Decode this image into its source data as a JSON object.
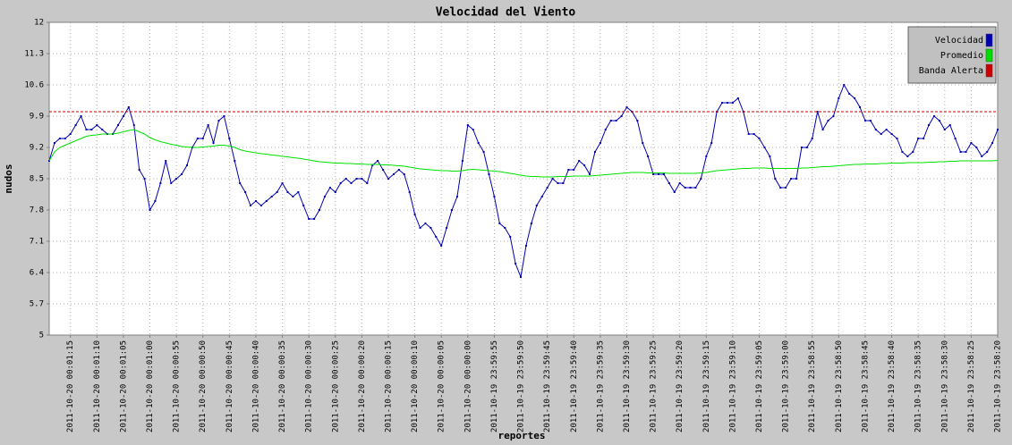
{
  "chart_data": {
    "type": "line",
    "title": "Velocidad del Viento",
    "y_label": "nudos",
    "x_label": "reportes",
    "ylim": [
      5,
      12
    ],
    "yticks": [
      5,
      5.7,
      6.4,
      7.1,
      7.8,
      8.5,
      9.2,
      9.9,
      10.6,
      11.3,
      12
    ],
    "grid": true,
    "legend": "top-right",
    "categories": [
      null,
      null,
      null,
      null,
      "2011-10-20 00:01:15",
      null,
      null,
      null,
      null,
      "2011-10-20 00:01:10",
      null,
      null,
      null,
      null,
      "2011-10-20 00:01:05",
      null,
      null,
      null,
      null,
      "2011-10-20 00:01:00",
      null,
      null,
      null,
      null,
      "2011-10-20 00:00:55",
      null,
      null,
      null,
      null,
      "2011-10-20 00:00:50",
      null,
      null,
      null,
      null,
      "2011-10-20 00:00:45",
      null,
      null,
      null,
      null,
      "2011-10-20 00:00:40",
      null,
      null,
      null,
      null,
      "2011-10-20 00:00:35",
      null,
      null,
      null,
      null,
      "2011-10-20 00:00:30",
      null,
      null,
      null,
      null,
      "2011-10-20 00:00:25",
      null,
      null,
      null,
      null,
      "2011-10-20 00:00:20",
      null,
      null,
      null,
      null,
      "2011-10-20 00:00:15",
      null,
      null,
      null,
      null,
      "2011-10-20 00:00:10",
      null,
      null,
      null,
      null,
      "2011-10-20 00:00:05",
      null,
      null,
      null,
      null,
      "2011-10-20 00:00:00",
      null,
      null,
      null,
      null,
      "2011-10-19 23:59:55",
      null,
      null,
      null,
      null,
      "2011-10-19 23:59:50",
      null,
      null,
      null,
      null,
      "2011-10-19 23:59:45",
      null,
      null,
      null,
      null,
      "2011-10-19 23:59:40",
      null,
      null,
      null,
      null,
      "2011-10-19 23:59:35",
      null,
      null,
      null,
      null,
      "2011-10-19 23:59:30",
      null,
      null,
      null,
      null,
      "2011-10-19 23:59:25",
      null,
      null,
      null,
      null,
      "2011-10-19 23:59:20",
      null,
      null,
      null,
      null,
      "2011-10-19 23:59:15",
      null,
      null,
      null,
      null,
      "2011-10-19 23:59:10",
      null,
      null,
      null,
      null,
      "2011-10-19 23:59:05",
      null,
      null,
      null,
      null,
      "2011-10-19 23:59:00",
      null,
      null,
      null,
      null,
      "2011-10-19 23:58:55",
      null,
      null,
      null,
      null,
      "2011-10-19 23:58:50",
      null,
      null,
      null,
      null,
      "2011-10-19 23:58:45",
      null,
      null,
      null,
      null,
      "2011-10-19 23:58:40",
      null,
      null,
      null,
      null,
      "2011-10-19 23:58:35",
      null,
      null,
      null,
      null,
      "2011-10-19 23:58:30",
      null,
      null,
      null,
      null,
      "2011-10-19 23:58:25",
      null,
      null,
      null,
      null,
      "2011-10-19 23:58:20"
    ],
    "series": [
      {
        "name": "Velocidad",
        "color": "#0000b0",
        "values": [
          8.9,
          9.3,
          9.4,
          9.4,
          9.5,
          9.7,
          9.9,
          9.6,
          9.6,
          9.7,
          9.6,
          9.5,
          9.5,
          9.7,
          9.9,
          10.1,
          9.7,
          8.7,
          8.5,
          7.8,
          8.0,
          8.4,
          8.9,
          8.4,
          8.5,
          8.6,
          8.8,
          9.2,
          9.4,
          9.4,
          9.7,
          9.3,
          9.8,
          9.9,
          9.4,
          8.9,
          8.4,
          8.2,
          7.9,
          8.0,
          7.9,
          8.0,
          8.1,
          8.2,
          8.4,
          8.2,
          8.1,
          8.2,
          7.9,
          7.6,
          7.6,
          7.8,
          8.1,
          8.3,
          8.2,
          8.4,
          8.5,
          8.4,
          8.5,
          8.5,
          8.4,
          8.8,
          8.9,
          8.7,
          8.5,
          8.6,
          8.7,
          8.6,
          8.2,
          7.7,
          7.4,
          7.5,
          7.4,
          7.2,
          7.0,
          7.4,
          7.8,
          8.1,
          8.9,
          9.7,
          9.6,
          9.3,
          9.1,
          8.6,
          8.1,
          7.5,
          7.4,
          7.2,
          6.6,
          6.3,
          7.0,
          7.5,
          7.9,
          8.1,
          8.3,
          8.5,
          8.4,
          8.4,
          8.7,
          8.7,
          8.9,
          8.8,
          8.6,
          9.1,
          9.3,
          9.6,
          9.8,
          9.8,
          9.9,
          10.1,
          10.0,
          9.8,
          9.3,
          9.0,
          8.6,
          8.6,
          8.6,
          8.4,
          8.2,
          8.4,
          8.3,
          8.3,
          8.3,
          8.5,
          9.0,
          9.3,
          10.0,
          10.2,
          10.2,
          10.2,
          10.3,
          10.0,
          9.5,
          9.5,
          9.4,
          9.2,
          9.0,
          8.5,
          8.3,
          8.3,
          8.5,
          8.5,
          9.2,
          9.2,
          9.4,
          10.0,
          9.6,
          9.8,
          9.9,
          10.3,
          10.6,
          10.4,
          10.3,
          10.1,
          9.8,
          9.8,
          9.6,
          9.5,
          9.6,
          9.5,
          9.4,
          9.1,
          9.0,
          9.1,
          9.4,
          9.4,
          9.7,
          9.9,
          9.8,
          9.6,
          9.7,
          9.4,
          9.1,
          9.1,
          9.3,
          9.2,
          9.0,
          9.1,
          9.3,
          9.6
        ]
      },
      {
        "name": "Promedio",
        "color": "#00e000",
        "values": [
          8.9,
          9.1,
          9.2,
          9.25,
          9.3,
          9.35,
          9.4,
          9.45,
          9.47,
          9.48,
          9.5,
          9.5,
          9.5,
          9.52,
          9.55,
          9.58,
          9.6,
          9.55,
          9.5,
          9.42,
          9.37,
          9.33,
          9.3,
          9.27,
          9.25,
          9.22,
          9.21,
          9.2,
          9.2,
          9.21,
          9.22,
          9.23,
          9.25,
          9.25,
          9.23,
          9.2,
          9.15,
          9.12,
          9.1,
          9.08,
          9.06,
          9.05,
          9.03,
          9.02,
          9.0,
          8.99,
          8.97,
          8.96,
          8.94,
          8.92,
          8.9,
          8.88,
          8.87,
          8.86,
          8.85,
          8.85,
          8.84,
          8.84,
          8.83,
          8.83,
          8.82,
          8.82,
          8.82,
          8.81,
          8.81,
          8.8,
          8.79,
          8.78,
          8.76,
          8.74,
          8.72,
          8.71,
          8.7,
          8.69,
          8.68,
          8.68,
          8.67,
          8.67,
          8.68,
          8.7,
          8.71,
          8.7,
          8.69,
          8.68,
          8.67,
          8.66,
          8.64,
          8.62,
          8.6,
          8.58,
          8.56,
          8.55,
          8.55,
          8.54,
          8.54,
          8.54,
          8.55,
          8.55,
          8.55,
          8.56,
          8.56,
          8.56,
          8.56,
          8.57,
          8.58,
          8.59,
          8.6,
          8.61,
          8.62,
          8.63,
          8.64,
          8.64,
          8.64,
          8.63,
          8.63,
          8.63,
          8.63,
          8.62,
          8.62,
          8.62,
          8.62,
          8.62,
          8.62,
          8.63,
          8.64,
          8.66,
          8.68,
          8.69,
          8.7,
          8.71,
          8.72,
          8.73,
          8.73,
          8.74,
          8.74,
          8.74,
          8.73,
          8.73,
          8.73,
          8.73,
          8.73,
          8.73,
          8.74,
          8.74,
          8.75,
          8.76,
          8.77,
          8.77,
          8.78,
          8.79,
          8.8,
          8.81,
          8.82,
          8.82,
          8.83,
          8.83,
          8.83,
          8.84,
          8.84,
          8.85,
          8.85,
          8.85,
          8.86,
          8.86,
          8.86,
          8.86,
          8.87,
          8.87,
          8.88,
          8.88,
          8.89,
          8.89,
          8.9,
          8.9,
          8.9,
          8.9,
          8.9,
          8.9,
          8.9,
          8.91
        ]
      },
      {
        "name": "Banda Alerta",
        "color": "#cc0000",
        "value": 10
      }
    ]
  }
}
